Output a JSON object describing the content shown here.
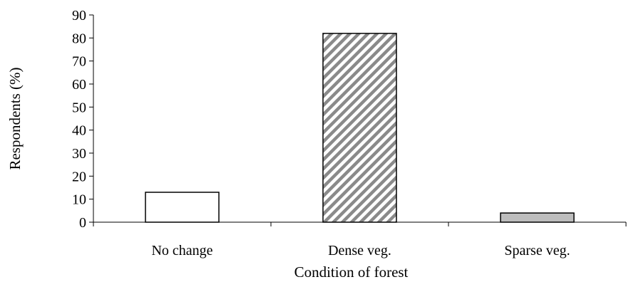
{
  "chart_data": {
    "type": "bar",
    "categories": [
      "No change",
      "Dense veg.",
      "Sparse veg."
    ],
    "values": [
      13,
      82,
      4
    ],
    "xlabel": "Condition of forest",
    "ylabel": "Respondents (%)",
    "ylim": [
      0,
      90
    ],
    "yticks": [
      0,
      10,
      20,
      30,
      40,
      50,
      60,
      70,
      80,
      90
    ],
    "grid": false,
    "legend": "none",
    "bar_styles": [
      {
        "fill": "#ffffff",
        "pattern": "none"
      },
      {
        "fill": "#ffffff",
        "pattern": "diagonal-hatch",
        "pattern_color": "#8a8a8a"
      },
      {
        "fill": "#bdbdbd",
        "pattern": "none"
      }
    ],
    "bar_stroke": "#000000"
  }
}
